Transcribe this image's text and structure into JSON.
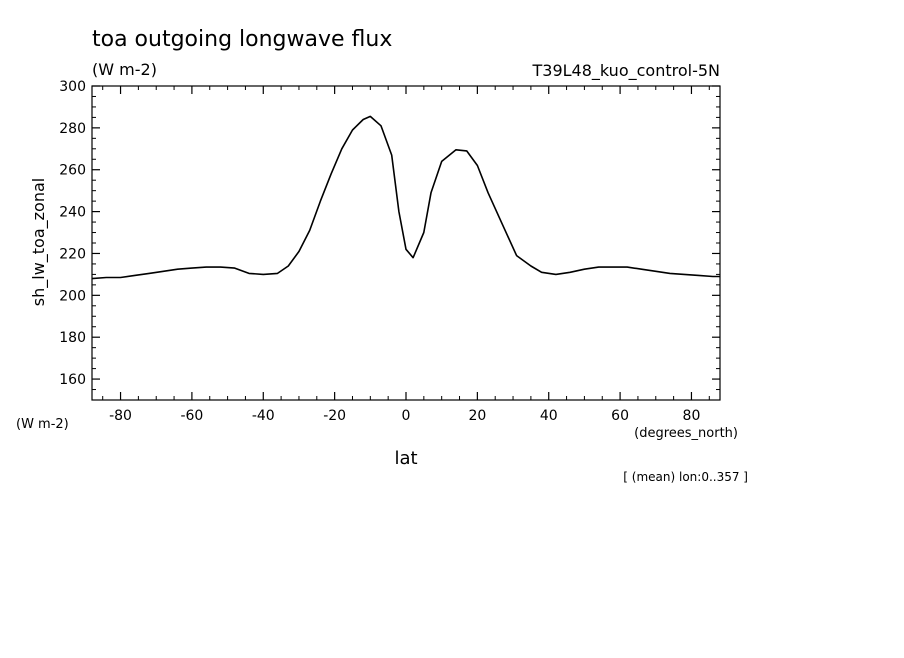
{
  "chart_data": {
    "type": "line",
    "title": "toa outgoing longwave flux",
    "units": "(W m-2)",
    "run_label": "T39L48_kuo_control-5N",
    "ylabel": "sh_lw_toa_zonal",
    "y_units_label": "(W m-2)",
    "xlabel": "lat",
    "x_units_label": "(degrees_north)",
    "footnote": "[ (mean) lon:0..357 ]",
    "xlim": [
      -88,
      88
    ],
    "ylim": [
      150,
      300
    ],
    "x_ticks": [
      -80,
      -60,
      -40,
      -20,
      0,
      20,
      40,
      60,
      80
    ],
    "x_tick_labels": [
      "-80",
      "-60",
      "-40",
      "-20",
      "0",
      "20",
      "40",
      "60",
      "80"
    ],
    "y_ticks": [
      160,
      180,
      200,
      220,
      240,
      260,
      280,
      300
    ],
    "y_tick_labels": [
      "160",
      "180",
      "200",
      "220",
      "240",
      "260",
      "280",
      "300"
    ],
    "line_color": "#000000",
    "grid": false,
    "series": [
      {
        "x": [
          -88,
          -84,
          -80,
          -76,
          -72,
          -68,
          -64,
          -60,
          -56,
          -52,
          -48,
          -44,
          -40,
          -36,
          -33,
          -30,
          -27,
          -24,
          -21,
          -18,
          -15,
          -12,
          -10,
          -7,
          -4,
          -2,
          0,
          2,
          5,
          7,
          10,
          14,
          17,
          20,
          23,
          27,
          31,
          35,
          38,
          42,
          46,
          50,
          54,
          58,
          62,
          66,
          70,
          74,
          78,
          82,
          86,
          88
        ],
        "y": [
          208,
          208.5,
          208.5,
          209.5,
          210.5,
          211.5,
          212.5,
          213,
          213.5,
          213.5,
          213,
          210.5,
          210,
          210.5,
          214,
          221,
          231,
          245,
          258,
          270,
          279,
          284,
          285.5,
          281,
          267,
          240,
          222,
          218,
          230,
          249,
          264,
          269.5,
          269,
          262,
          249,
          234,
          219,
          214,
          211,
          210,
          211,
          212.5,
          213.5,
          213.5,
          213.5,
          212.5,
          211.5,
          210.5,
          210,
          209.5,
          209,
          209
        ]
      }
    ]
  }
}
